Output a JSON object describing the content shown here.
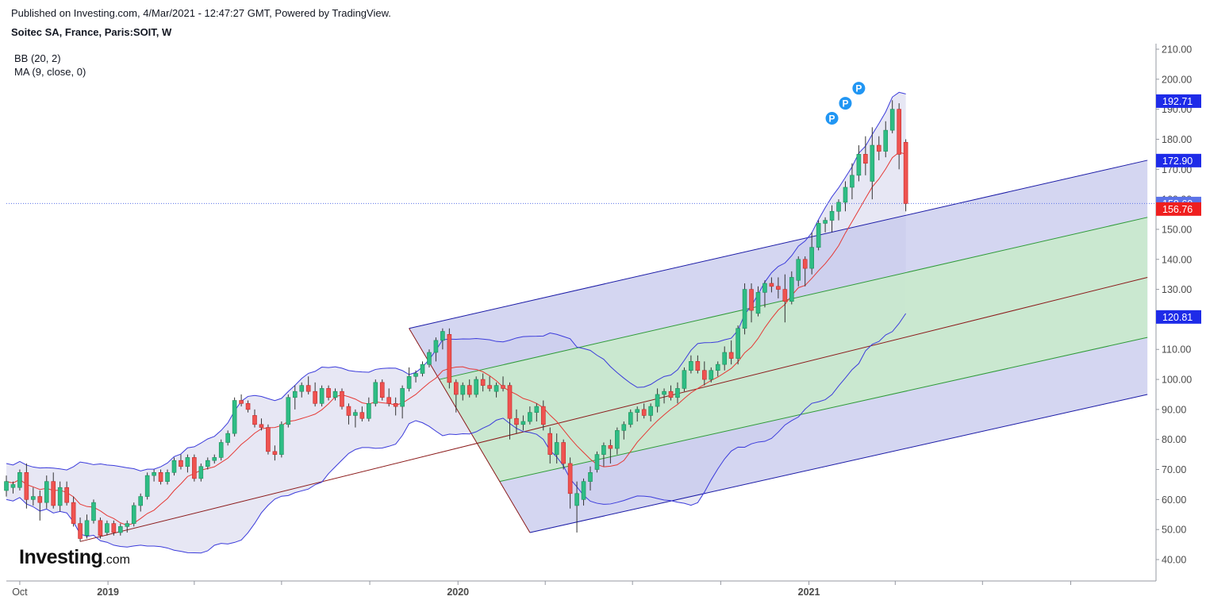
{
  "header": {
    "published_text": "Published on Investing.com, 4/Mar/2021 - 12:47:27 GMT, Powered by TradingView.",
    "symbol_text": "Soitec SA, France, Paris:SOIT, W"
  },
  "indicators": {
    "bb_label": "BB (20, 2)",
    "ma_label": "MA (9, close, 0)"
  },
  "logo": {
    "main": "Investing",
    "suffix": ".com"
  },
  "colors": {
    "up_candle": "#26a69a",
    "up_candle_fill": "#2ebd85",
    "down_candle": "#ef5350",
    "bb_line": "#3b3bdb",
    "bb_fill": "#e3e3f2",
    "ma_line": "#e53935",
    "pitchfork_outer_line": "#1a1aa6",
    "pitchfork_outer_fill": "#c5c8ec",
    "pitchfork_inner_line": "#2e9a38",
    "pitchfork_inner_fill": "#c8ebca",
    "median_line": "#8b1a1a",
    "price_line": "#5b73e8",
    "tag_blue": "#1e2be8",
    "tag_red": "#ef1f1f",
    "pivot_marker": "#2196f3"
  },
  "chart_data": {
    "type": "candlestick",
    "ylim": [
      34,
      213
    ],
    "y_ticks": [
      "210.00",
      "200.00",
      "190.00",
      "180.00",
      "170.00",
      "160.00",
      "150.00",
      "140.00",
      "130.00",
      "120.00",
      "110.00",
      "100.00",
      "90.00",
      "80.00",
      "70.00",
      "60.00",
      "50.00",
      "40.00"
    ],
    "x_labels": [
      {
        "label": "Oct",
        "date": "2018-10-01"
      },
      {
        "label": "2019",
        "date": "2019-01-01"
      },
      {
        "label": "2020",
        "date": "2020-01-01"
      },
      {
        "label": "2021",
        "date": "2021-01-01"
      }
    ],
    "x_minor_ticks": [
      "2019-04-01",
      "2019-07-01",
      "2019-10-01",
      "2020-04-01",
      "2020-07-01",
      "2020-10-01",
      "2021-04-01",
      "2021-07-01",
      "2021-10-01"
    ],
    "x_range": [
      "2018-09-17",
      "2021-12-24"
    ],
    "last_price": 158.6,
    "price_tags": [
      {
        "value": 192.71,
        "text": "192.71",
        "color": "blue"
      },
      {
        "value": 172.9,
        "text": "172.90",
        "color": "blue"
      },
      {
        "value": 158.6,
        "text": "158.60",
        "color": "lightblue"
      },
      {
        "value": 156.76,
        "text": "156.76",
        "color": "red"
      },
      {
        "value": 120.81,
        "text": "120.81",
        "color": "blue"
      }
    ],
    "pivot_marker_label": "P",
    "pivot_markers": [
      {
        "date": "2021-01-25",
        "value": 187
      },
      {
        "date": "2021-02-08",
        "value": 192
      },
      {
        "date": "2021-02-22",
        "value": 197
      }
    ],
    "pitchfork": {
      "p1": {
        "date": "2018-12-03",
        "value": 46
      },
      "p2": {
        "date": "2019-11-11",
        "value": 117
      },
      "p3": {
        "date": "2020-03-16",
        "value": 49
      },
      "end_date": "2021-12-20",
      "upper_at_end": 173,
      "lower_at_end": 95,
      "inner_upper_at_end": 154,
      "inner_lower_at_end": 114,
      "median_at_end": 134
    },
    "candles": [
      {
        "d": "2018-09-17",
        "o": 63,
        "h": 68,
        "l": 61,
        "c": 66
      },
      {
        "d": "2018-09-24",
        "o": 64,
        "h": 66,
        "l": 62,
        "c": 65
      },
      {
        "d": "2018-10-01",
        "o": 64,
        "h": 70,
        "l": 63,
        "c": 69
      },
      {
        "d": "2018-10-08",
        "o": 69,
        "h": 72,
        "l": 57,
        "c": 60
      },
      {
        "d": "2018-10-15",
        "o": 60,
        "h": 64,
        "l": 58,
        "c": 61
      },
      {
        "d": "2018-10-22",
        "o": 61,
        "h": 63,
        "l": 53,
        "c": 59
      },
      {
        "d": "2018-10-29",
        "o": 59,
        "h": 68,
        "l": 57,
        "c": 66
      },
      {
        "d": "2018-11-05",
        "o": 66,
        "h": 69,
        "l": 57,
        "c": 58
      },
      {
        "d": "2018-11-12",
        "o": 58,
        "h": 66,
        "l": 56,
        "c": 64
      },
      {
        "d": "2018-11-19",
        "o": 64,
        "h": 66,
        "l": 58,
        "c": 59
      },
      {
        "d": "2018-11-26",
        "o": 59,
        "h": 61,
        "l": 51,
        "c": 52
      },
      {
        "d": "2018-12-03",
        "o": 52,
        "h": 54,
        "l": 46,
        "c": 47
      },
      {
        "d": "2018-12-10",
        "o": 48,
        "h": 55,
        "l": 47,
        "c": 53
      },
      {
        "d": "2018-12-17",
        "o": 53,
        "h": 60,
        "l": 52,
        "c": 59
      },
      {
        "d": "2018-12-24",
        "o": 53,
        "h": 54,
        "l": 47,
        "c": 48
      },
      {
        "d": "2018-12-31",
        "o": 49,
        "h": 53,
        "l": 48,
        "c": 52
      },
      {
        "d": "2019-01-07",
        "o": 52,
        "h": 53,
        "l": 48,
        "c": 49
      },
      {
        "d": "2019-01-14",
        "o": 49,
        "h": 52,
        "l": 48,
        "c": 51
      },
      {
        "d": "2019-01-21",
        "o": 51,
        "h": 53,
        "l": 49,
        "c": 52
      },
      {
        "d": "2019-01-28",
        "o": 52,
        "h": 59,
        "l": 51,
        "c": 58
      },
      {
        "d": "2019-02-04",
        "o": 58,
        "h": 62,
        "l": 56,
        "c": 61
      },
      {
        "d": "2019-02-11",
        "o": 61,
        "h": 69,
        "l": 60,
        "c": 68
      },
      {
        "d": "2019-02-18",
        "o": 68,
        "h": 70,
        "l": 66,
        "c": 69
      },
      {
        "d": "2019-02-25",
        "o": 69,
        "h": 70,
        "l": 65,
        "c": 66
      },
      {
        "d": "2019-03-04",
        "o": 66,
        "h": 70,
        "l": 65,
        "c": 69
      },
      {
        "d": "2019-03-11",
        "o": 69,
        "h": 74,
        "l": 68,
        "c": 73
      },
      {
        "d": "2019-03-18",
        "o": 73,
        "h": 75,
        "l": 70,
        "c": 71
      },
      {
        "d": "2019-03-25",
        "o": 71,
        "h": 75,
        "l": 69,
        "c": 74
      },
      {
        "d": "2019-04-01",
        "o": 74,
        "h": 75,
        "l": 66,
        "c": 67
      },
      {
        "d": "2019-04-08",
        "o": 67,
        "h": 72,
        "l": 66,
        "c": 71
      },
      {
        "d": "2019-04-15",
        "o": 71,
        "h": 74,
        "l": 70,
        "c": 73
      },
      {
        "d": "2019-04-22",
        "o": 73,
        "h": 75,
        "l": 72,
        "c": 74
      },
      {
        "d": "2019-04-29",
        "o": 74,
        "h": 80,
        "l": 73,
        "c": 79
      },
      {
        "d": "2019-05-06",
        "o": 79,
        "h": 83,
        "l": 78,
        "c": 82
      },
      {
        "d": "2019-05-13",
        "o": 82,
        "h": 94,
        "l": 81,
        "c": 93
      },
      {
        "d": "2019-05-20",
        "o": 93,
        "h": 95,
        "l": 91,
        "c": 92
      },
      {
        "d": "2019-05-27",
        "o": 92,
        "h": 93,
        "l": 89,
        "c": 90
      },
      {
        "d": "2019-06-03",
        "o": 88,
        "h": 90,
        "l": 84,
        "c": 85
      },
      {
        "d": "2019-06-10",
        "o": 85,
        "h": 87,
        "l": 83,
        "c": 84
      },
      {
        "d": "2019-06-17",
        "o": 84,
        "h": 85,
        "l": 75,
        "c": 76
      },
      {
        "d": "2019-06-24",
        "o": 76,
        "h": 78,
        "l": 73,
        "c": 75
      },
      {
        "d": "2019-07-01",
        "o": 75,
        "h": 86,
        "l": 74,
        "c": 85
      },
      {
        "d": "2019-07-08",
        "o": 85,
        "h": 95,
        "l": 84,
        "c": 94
      },
      {
        "d": "2019-07-15",
        "o": 94,
        "h": 98,
        "l": 90,
        "c": 96
      },
      {
        "d": "2019-07-22",
        "o": 96,
        "h": 99,
        "l": 94,
        "c": 98
      },
      {
        "d": "2019-07-29",
        "o": 98,
        "h": 101,
        "l": 95,
        "c": 96
      },
      {
        "d": "2019-08-05",
        "o": 96,
        "h": 99,
        "l": 91,
        "c": 92
      },
      {
        "d": "2019-08-12",
        "o": 92,
        "h": 98,
        "l": 91,
        "c": 97
      },
      {
        "d": "2019-08-19",
        "o": 97,
        "h": 98,
        "l": 93,
        "c": 94
      },
      {
        "d": "2019-08-26",
        "o": 94,
        "h": 97,
        "l": 93,
        "c": 96
      },
      {
        "d": "2019-09-02",
        "o": 96,
        "h": 97,
        "l": 90,
        "c": 91
      },
      {
        "d": "2019-09-09",
        "o": 91,
        "h": 92,
        "l": 85,
        "c": 88
      },
      {
        "d": "2019-09-16",
        "o": 88,
        "h": 90,
        "l": 84,
        "c": 89
      },
      {
        "d": "2019-09-23",
        "o": 89,
        "h": 91,
        "l": 86,
        "c": 87
      },
      {
        "d": "2019-09-30",
        "o": 87,
        "h": 94,
        "l": 86,
        "c": 92
      },
      {
        "d": "2019-10-07",
        "o": 92,
        "h": 100,
        "l": 91,
        "c": 99
      },
      {
        "d": "2019-10-14",
        "o": 99,
        "h": 100,
        "l": 93,
        "c": 94
      },
      {
        "d": "2019-10-21",
        "o": 94,
        "h": 97,
        "l": 91,
        "c": 92
      },
      {
        "d": "2019-10-28",
        "o": 92,
        "h": 94,
        "l": 88,
        "c": 91
      },
      {
        "d": "2019-11-04",
        "o": 91,
        "h": 98,
        "l": 87,
        "c": 97
      },
      {
        "d": "2019-11-11",
        "o": 97,
        "h": 104,
        "l": 96,
        "c": 101
      },
      {
        "d": "2019-11-18",
        "o": 101,
        "h": 103,
        "l": 99,
        "c": 102
      },
      {
        "d": "2019-11-25",
        "o": 102,
        "h": 106,
        "l": 101,
        "c": 105
      },
      {
        "d": "2019-12-02",
        "o": 105,
        "h": 110,
        "l": 104,
        "c": 109
      },
      {
        "d": "2019-12-09",
        "o": 109,
        "h": 114,
        "l": 106,
        "c": 113
      },
      {
        "d": "2019-12-16",
        "o": 113,
        "h": 117,
        "l": 110,
        "c": 116
      },
      {
        "d": "2019-12-23",
        "o": 115,
        "h": 117,
        "l": 97,
        "c": 99
      },
      {
        "d": "2019-12-30",
        "o": 99,
        "h": 100,
        "l": 89,
        "c": 95
      },
      {
        "d": "2020-01-06",
        "o": 95,
        "h": 99,
        "l": 93,
        "c": 98
      },
      {
        "d": "2020-01-13",
        "o": 98,
        "h": 100,
        "l": 94,
        "c": 95
      },
      {
        "d": "2020-01-20",
        "o": 95,
        "h": 101,
        "l": 94,
        "c": 100
      },
      {
        "d": "2020-01-27",
        "o": 100,
        "h": 102,
        "l": 96,
        "c": 98
      },
      {
        "d": "2020-02-03",
        "o": 98,
        "h": 101,
        "l": 96,
        "c": 97
      },
      {
        "d": "2020-02-10",
        "o": 96,
        "h": 99,
        "l": 94,
        "c": 98
      },
      {
        "d": "2020-02-17",
        "o": 98,
        "h": 101,
        "l": 96,
        "c": 97
      },
      {
        "d": "2020-02-24",
        "o": 98,
        "h": 99,
        "l": 80,
        "c": 87
      },
      {
        "d": "2020-03-02",
        "o": 87,
        "h": 90,
        "l": 82,
        "c": 85
      },
      {
        "d": "2020-03-09",
        "o": 85,
        "h": 88,
        "l": 83,
        "c": 86
      },
      {
        "d": "2020-03-16",
        "o": 86,
        "h": 91,
        "l": 85,
        "c": 89
      },
      {
        "d": "2020-03-23",
        "o": 89,
        "h": 92,
        "l": 86,
        "c": 91
      },
      {
        "d": "2020-03-30",
        "o": 91,
        "h": 93,
        "l": 83,
        "c": 85
      },
      {
        "d": "2020-04-06",
        "o": 82,
        "h": 84,
        "l": 72,
        "c": 75
      },
      {
        "d": "2020-04-13",
        "o": 75,
        "h": 82,
        "l": 72,
        "c": 79
      },
      {
        "d": "2020-04-20",
        "o": 79,
        "h": 80,
        "l": 70,
        "c": 72
      },
      {
        "d": "2020-04-27",
        "o": 72,
        "h": 74,
        "l": 57,
        "c": 62
      },
      {
        "d": "2020-05-04",
        "o": 58,
        "h": 66,
        "l": 49,
        "c": 62
      },
      {
        "d": "2020-05-11",
        "o": 60,
        "h": 67,
        "l": 58,
        "c": 66
      },
      {
        "d": "2020-05-18",
        "o": 66,
        "h": 71,
        "l": 63,
        "c": 69
      },
      {
        "d": "2020-05-25",
        "o": 70,
        "h": 76,
        "l": 69,
        "c": 75
      },
      {
        "d": "2020-06-01",
        "o": 75,
        "h": 79,
        "l": 71,
        "c": 78
      },
      {
        "d": "2020-06-08",
        "o": 78,
        "h": 80,
        "l": 72,
        "c": 77
      },
      {
        "d": "2020-06-15",
        "o": 77,
        "h": 84,
        "l": 75,
        "c": 83
      },
      {
        "d": "2020-06-22",
        "o": 83,
        "h": 86,
        "l": 80,
        "c": 85
      },
      {
        "d": "2020-06-29",
        "o": 85,
        "h": 90,
        "l": 84,
        "c": 89
      },
      {
        "d": "2020-07-06",
        "o": 89,
        "h": 91,
        "l": 86,
        "c": 90
      },
      {
        "d": "2020-07-13",
        "o": 90,
        "h": 92,
        "l": 87,
        "c": 88
      },
      {
        "d": "2020-07-20",
        "o": 88,
        "h": 92,
        "l": 86,
        "c": 91
      },
      {
        "d": "2020-07-27",
        "o": 91,
        "h": 97,
        "l": 89,
        "c": 95
      },
      {
        "d": "2020-08-03",
        "o": 95,
        "h": 97,
        "l": 92,
        "c": 96
      },
      {
        "d": "2020-08-10",
        "o": 96,
        "h": 98,
        "l": 93,
        "c": 94
      },
      {
        "d": "2020-08-17",
        "o": 94,
        "h": 99,
        "l": 92,
        "c": 97
      },
      {
        "d": "2020-08-24",
        "o": 97,
        "h": 104,
        "l": 96,
        "c": 103
      },
      {
        "d": "2020-08-31",
        "o": 103,
        "h": 108,
        "l": 102,
        "c": 106
      },
      {
        "d": "2020-09-07",
        "o": 106,
        "h": 108,
        "l": 102,
        "c": 103
      },
      {
        "d": "2020-09-14",
        "o": 103,
        "h": 106,
        "l": 98,
        "c": 100
      },
      {
        "d": "2020-09-21",
        "o": 100,
        "h": 104,
        "l": 99,
        "c": 103
      },
      {
        "d": "2020-09-28",
        "o": 103,
        "h": 106,
        "l": 101,
        "c": 105
      },
      {
        "d": "2020-10-05",
        "o": 105,
        "h": 111,
        "l": 103,
        "c": 109
      },
      {
        "d": "2020-10-12",
        "o": 109,
        "h": 113,
        "l": 105,
        "c": 107
      },
      {
        "d": "2020-10-19",
        "o": 107,
        "h": 118,
        "l": 105,
        "c": 117
      },
      {
        "d": "2020-10-26",
        "o": 117,
        "h": 132,
        "l": 115,
        "c": 130
      },
      {
        "d": "2020-11-02",
        "o": 130,
        "h": 132,
        "l": 119,
        "c": 123
      },
      {
        "d": "2020-11-09",
        "o": 122,
        "h": 131,
        "l": 121,
        "c": 129
      },
      {
        "d": "2020-11-16",
        "o": 129,
        "h": 133,
        "l": 124,
        "c": 132
      },
      {
        "d": "2020-11-23",
        "o": 132,
        "h": 134,
        "l": 129,
        "c": 131
      },
      {
        "d": "2020-11-30",
        "o": 131,
        "h": 134,
        "l": 127,
        "c": 130
      },
      {
        "d": "2020-12-07",
        "o": 130,
        "h": 135,
        "l": 119,
        "c": 126
      },
      {
        "d": "2020-12-14",
        "o": 126,
        "h": 136,
        "l": 125,
        "c": 134
      },
      {
        "d": "2020-12-21",
        "o": 133,
        "h": 141,
        "l": 131,
        "c": 140
      },
      {
        "d": "2020-12-28",
        "o": 140,
        "h": 141,
        "l": 131,
        "c": 137
      },
      {
        "d": "2021-01-04",
        "o": 137,
        "h": 149,
        "l": 135,
        "c": 144
      },
      {
        "d": "2021-01-11",
        "o": 144,
        "h": 153,
        "l": 143,
        "c": 152
      },
      {
        "d": "2021-01-18",
        "o": 152,
        "h": 154,
        "l": 149,
        "c": 153
      },
      {
        "d": "2021-01-25",
        "o": 153,
        "h": 158,
        "l": 149,
        "c": 156
      },
      {
        "d": "2021-02-01",
        "o": 156,
        "h": 160,
        "l": 153,
        "c": 159
      },
      {
        "d": "2021-02-08",
        "o": 159,
        "h": 166,
        "l": 156,
        "c": 164
      },
      {
        "d": "2021-02-15",
        "o": 164,
        "h": 172,
        "l": 160,
        "c": 168
      },
      {
        "d": "2021-02-22",
        "o": 168,
        "h": 178,
        "l": 166,
        "c": 175
      },
      {
        "d": "2021-03-01",
        "o": 175,
        "h": 181,
        "l": 168,
        "c": 172
      },
      {
        "d": "2021-03-08",
        "o": 166,
        "h": 184,
        "l": 160,
        "c": 178
      },
      {
        "d": "2021-03-15",
        "o": 178,
        "h": 181,
        "l": 173,
        "c": 176
      },
      {
        "d": "2021-03-22",
        "o": 176,
        "h": 186,
        "l": 174,
        "c": 183
      },
      {
        "d": "2021-03-29",
        "o": 183,
        "h": 193,
        "l": 182,
        "c": 190
      },
      {
        "d": "2021-04-05",
        "o": 190,
        "h": 192,
        "l": 170,
        "c": 175
      },
      {
        "d": "2021-04-12",
        "o": 179,
        "h": 180,
        "l": 156,
        "c": 158.6
      }
    ]
  }
}
